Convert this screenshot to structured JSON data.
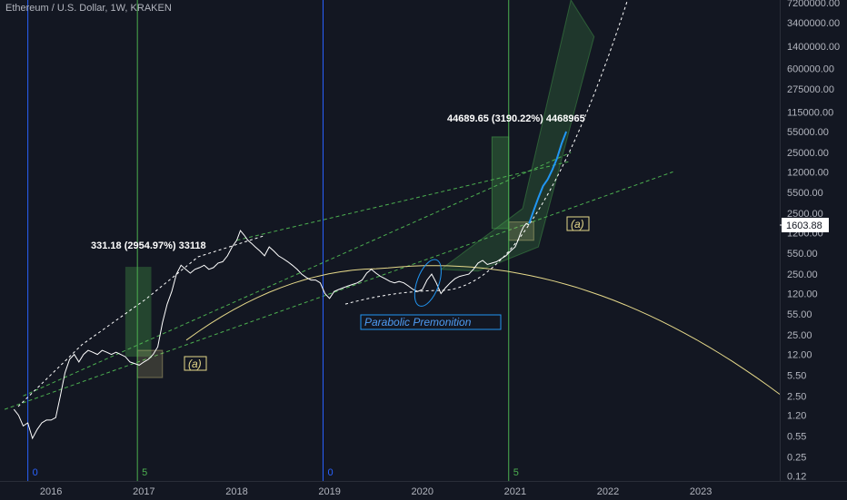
{
  "chart_data": {
    "type": "line",
    "title": "Ethereum / U.S. Dollar, 1W, KRAKEN",
    "yscale": "log",
    "ylim": [
      0.1,
      8000000
    ],
    "xlim": [
      2015.45,
      2023.85
    ],
    "y_ticks": [
      "7200000.00",
      "3400000.00",
      "1400000.00",
      "600000.00",
      "275000.00",
      "115000.00",
      "55000.00",
      "25000.00",
      "12000.00",
      "5500.00",
      "2500.00",
      "1200.00",
      "550.00",
      "250.00",
      "120.00",
      "55.00",
      "25.00",
      "12.00",
      "5.50",
      "2.50",
      "1.20",
      "0.55",
      "0.25",
      "0.12"
    ],
    "y_tick_values": [
      7200000,
      3400000,
      1400000,
      600000,
      275000,
      115000,
      55000,
      25000,
      12000,
      5500,
      2500,
      1200,
      550,
      250,
      120,
      55,
      25,
      12,
      5.5,
      2.5,
      1.2,
      0.55,
      0.25,
      0.12
    ],
    "x_ticks": [
      "2016",
      "2017",
      "2018",
      "2019",
      "2020",
      "2021",
      "2022",
      "2023"
    ],
    "x_tick_values": [
      2016,
      2017,
      2018,
      2019,
      2020,
      2021,
      2022,
      2023
    ],
    "last_price": "1603.88",
    "price_series": {
      "name": "ETHUSD",
      "x": [
        2015.6,
        2015.65,
        2015.7,
        2015.75,
        2015.8,
        2015.85,
        2015.9,
        2015.95,
        2016.0,
        2016.05,
        2016.1,
        2016.15,
        2016.2,
        2016.25,
        2016.3,
        2016.35,
        2016.4,
        2016.45,
        2016.5,
        2016.55,
        2016.6,
        2016.65,
        2016.7,
        2016.75,
        2016.8,
        2016.85,
        2016.9,
        2016.95,
        2017.0,
        2017.05,
        2017.1,
        2017.15,
        2017.2,
        2017.25,
        2017.3,
        2017.35,
        2017.4,
        2017.45,
        2017.5,
        2017.55,
        2017.6,
        2017.65,
        2017.7,
        2017.75,
        2017.8,
        2017.85,
        2017.9,
        2017.95,
        2018.0,
        2018.04,
        2018.08,
        2018.12,
        2018.16,
        2018.2,
        2018.25,
        2018.3,
        2018.35,
        2018.4,
        2018.45,
        2018.5,
        2018.55,
        2018.6,
        2018.65,
        2018.7,
        2018.75,
        2018.8,
        2018.85,
        2018.9,
        2018.95,
        2019.0,
        2019.05,
        2019.1,
        2019.15,
        2019.2,
        2019.25,
        2019.3,
        2019.35,
        2019.4,
        2019.45,
        2019.5,
        2019.55,
        2019.6,
        2019.65,
        2019.7,
        2019.75,
        2019.8,
        2019.85,
        2019.9,
        2019.95,
        2020.0,
        2020.05,
        2020.1,
        2020.15,
        2020.2,
        2020.25,
        2020.3,
        2020.35,
        2020.4,
        2020.45,
        2020.5,
        2020.55,
        2020.6,
        2020.65,
        2020.7,
        2020.75,
        2020.8,
        2020.85,
        2020.9,
        2020.95,
        2021.0,
        2021.03,
        2021.06,
        2021.09,
        2021.12,
        2021.15
      ],
      "y": [
        1.5,
        1.2,
        0.8,
        0.9,
        0.5,
        0.7,
        0.9,
        1.0,
        1.0,
        1.1,
        2.5,
        6.0,
        10.0,
        12.0,
        9.0,
        12.0,
        14.0,
        13.0,
        12.0,
        14.0,
        13.0,
        12.0,
        13.0,
        12.0,
        11.0,
        9.0,
        8.5,
        8.0,
        9.0,
        10.0,
        12.0,
        16.0,
        40.0,
        80.0,
        130.0,
        250.0,
        350.0,
        300.0,
        260.0,
        300.0,
        320.0,
        350.0,
        300.0,
        320.0,
        380.0,
        400.0,
        500.0,
        700.0,
        900.0,
        1300.0,
        1100.0,
        900.0,
        800.0,
        700.0,
        600.0,
        500.0,
        700.0,
        600.0,
        500.0,
        450.0,
        400.0,
        350.0,
        300.0,
        250.0,
        220.0,
        200.0,
        200.0,
        180.0,
        120.0,
        100.0,
        130.0,
        140.0,
        150.0,
        160.0,
        170.0,
        180.0,
        200.0,
        260.0,
        300.0,
        260.0,
        230.0,
        210.0,
        190.0,
        180.0,
        190.0,
        180.0,
        160.0,
        140.0,
        130.0,
        140.0,
        200.0,
        250.0,
        180.0,
        120.0,
        150.0,
        180.0,
        210.0,
        230.0,
        240.0,
        250.0,
        300.0,
        380.0,
        420.0,
        360.0,
        380.0,
        400.0,
        450.0,
        500.0,
        600.0,
        700.0,
        900.0,
        1200.0,
        1500.0,
        1700.0,
        1603.88
      ]
    },
    "projection_series": {
      "name": "Parabolic projection",
      "x": [
        2021.15,
        2021.2,
        2021.25,
        2021.3,
        2021.35,
        2021.4,
        2021.45,
        2021.5,
        2021.55
      ],
      "y": [
        1700,
        2800,
        4500,
        7000,
        9000,
        13000,
        20000,
        35000,
        55000
      ]
    },
    "annotations": [
      {
        "text": "331.18 (2954.97%) 33118",
        "kind": "measure"
      },
      {
        "text": "44689.65 (3190.22%) 4468965",
        "kind": "measure"
      },
      {
        "text": "(a)",
        "kind": "label"
      },
      {
        "text": "(a)",
        "kind": "label"
      },
      {
        "text": "Parabolic Premonition",
        "kind": "label"
      }
    ],
    "cycle_markers": [
      {
        "x": 2015.75,
        "label": "0",
        "color": "#2962ff"
      },
      {
        "x": 2016.93,
        "label": "5",
        "color": "#4caf50"
      },
      {
        "x": 2018.93,
        "label": "0",
        "color": "#2962ff"
      },
      {
        "x": 2020.93,
        "label": "5",
        "color": "#4caf50"
      }
    ]
  },
  "colors": {
    "background": "#131722",
    "price": "#ffffff",
    "projection": "#2196f3",
    "blue_line": "#2962ff",
    "green_line": "#8bc34a",
    "channel": "#4caf50",
    "arc": "#e6d98a",
    "dashed": "#ffffff"
  }
}
